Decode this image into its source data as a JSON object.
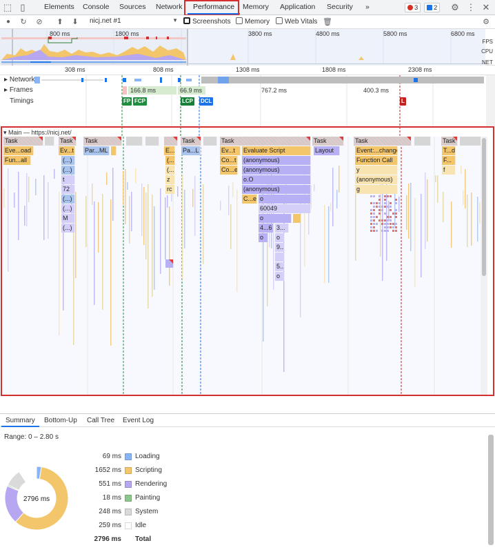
{
  "tabs": [
    "Elements",
    "Console",
    "Sources",
    "Network",
    "Performance",
    "Memory",
    "Application",
    "Security"
  ],
  "tabs_overflow": "»",
  "active_tab": "Performance",
  "error_count": "3",
  "message_count": "2",
  "toolbar": {
    "profile": "nicj.net #1",
    "screenshots_label": "Screenshots",
    "memory_label": "Memory",
    "webvitals_label": "Web Vitals"
  },
  "overview": {
    "ticks": [
      "800 ms",
      "1800 ms",
      "3800 ms",
      "4800 ms",
      "5800 ms",
      "6800 ms"
    ],
    "labels": [
      "FPS",
      "CPU",
      "NET"
    ]
  },
  "ruler_ticks": [
    "308 ms",
    "808 ms",
    "1308 ms",
    "1808 ms",
    "2308 ms"
  ],
  "tracks": {
    "network": "Network",
    "frames": "Frames",
    "timings": "Timings",
    "frame_values": [
      "166.8 ms",
      "66.9 ms",
      "767.2 ms",
      "400.3 ms"
    ],
    "timing_marks": [
      {
        "label": "FP",
        "color": "#1e8e3e"
      },
      {
        "label": "FCP",
        "color": "#1e8e3e"
      },
      {
        "label": "LCP",
        "color": "#188038"
      },
      {
        "label": "DCL",
        "color": "#1a73e8"
      },
      {
        "label": "L",
        "color": "#c5221f"
      }
    ]
  },
  "main": {
    "title": "Main — https://nicj.net/",
    "task_label": "Task",
    "rows": {
      "evt_load": "Eve...oad",
      "fun_all": "Fun...all",
      "ev_t": "Ev...t",
      "par_ml": "Par...ML",
      "t_dots": "T...",
      "e_dots": "E...",
      "pa_l": "Pa...L",
      "evaluate_script": "Evaluate Script",
      "co_t": "Co...t",
      "co_e": "Co...e",
      "c_e": "C...e",
      "anonymous": "(anonymous)",
      "o_o": "o.O",
      "o": "o",
      "n60049": "60049",
      "n4_6": "4...6",
      "n3": "3...",
      "n9": "9...",
      "n5": "5...",
      "layout": "Layout",
      "event_change": "Event:...change",
      "function_call": "Function Call",
      "y": "y",
      "g": "g",
      "t_d": "T...d",
      "f_dots": "F...",
      "f": "f",
      "paren": "(...)",
      "t": "t",
      "n72": "72",
      "m": "M",
      "z": "z",
      "rc": "rc"
    }
  },
  "bottom_tabs": [
    "Summary",
    "Bottom-Up",
    "Call Tree",
    "Event Log"
  ],
  "summary": {
    "range": "Range: 0 – 2.80 s",
    "total_center": "2796 ms",
    "items": [
      {
        "value": "69 ms",
        "name": "Loading",
        "color": "#8ab4f8",
        "ms": 69
      },
      {
        "value": "1652 ms",
        "name": "Scripting",
        "color": "#f3c66b",
        "ms": 1652
      },
      {
        "value": "551 ms",
        "name": "Rendering",
        "color": "#b7a6f0",
        "ms": 551
      },
      {
        "value": "18 ms",
        "name": "Painting",
        "color": "#8cc68a",
        "ms": 18
      },
      {
        "value": "248 ms",
        "name": "System",
        "color": "#dadada",
        "ms": 248
      },
      {
        "value": "259 ms",
        "name": "Idle",
        "color": "#ffffff",
        "ms": 259
      }
    ],
    "total": {
      "value": "2796 ms",
      "name": "Total"
    }
  }
}
